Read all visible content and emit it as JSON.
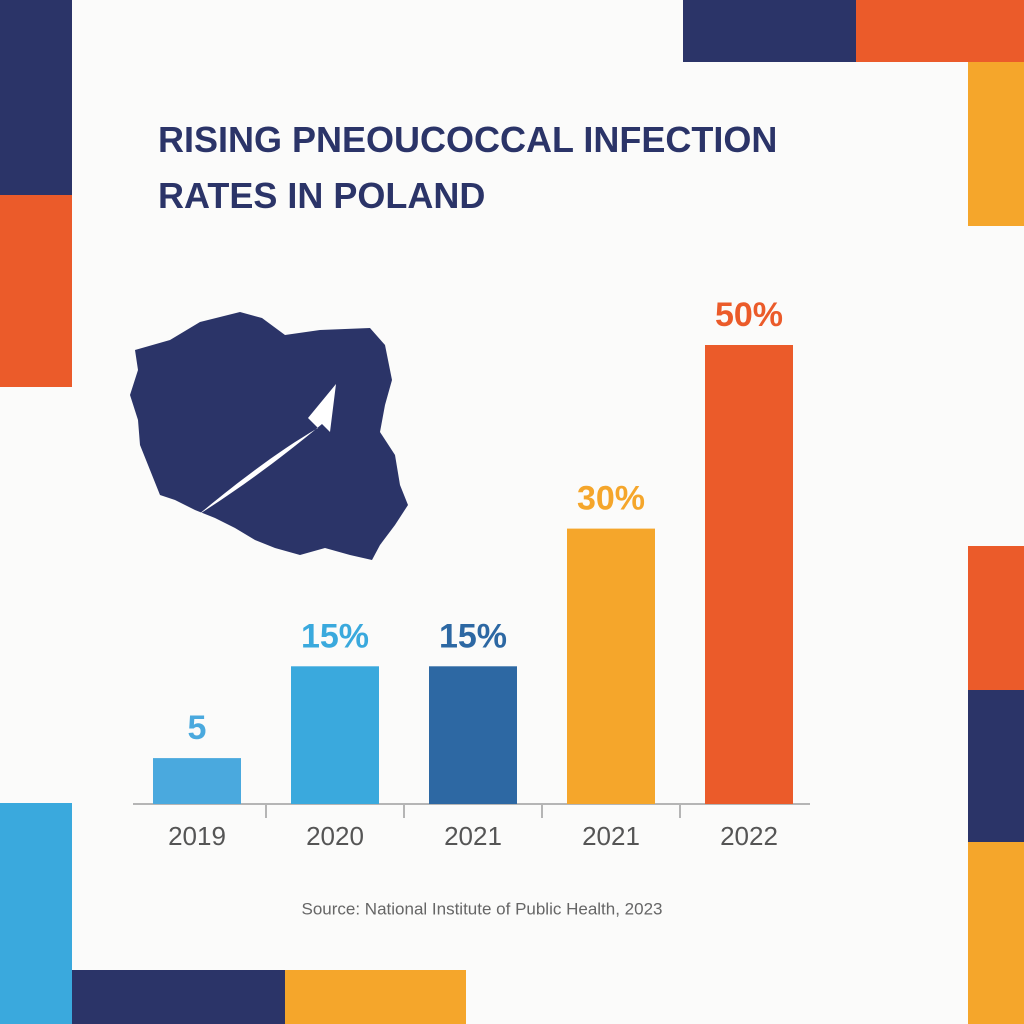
{
  "chart_data": {
    "type": "bar",
    "title": "RISING PNEOUCOCCAL INFECTION RATES IN POLAND",
    "categories": [
      "2019",
      "2020",
      "2021",
      "2021",
      "2022"
    ],
    "values": [
      5,
      15,
      15,
      30,
      50
    ],
    "value_labels": [
      "5",
      "15%",
      "15%",
      "30%",
      "50%"
    ],
    "colors": [
      "#4aa9de",
      "#3aa9dd",
      "#2d68a3",
      "#f5a62b",
      "#eb5b2a"
    ],
    "source": "Source: National Institute of Public Health, 2023"
  }
}
